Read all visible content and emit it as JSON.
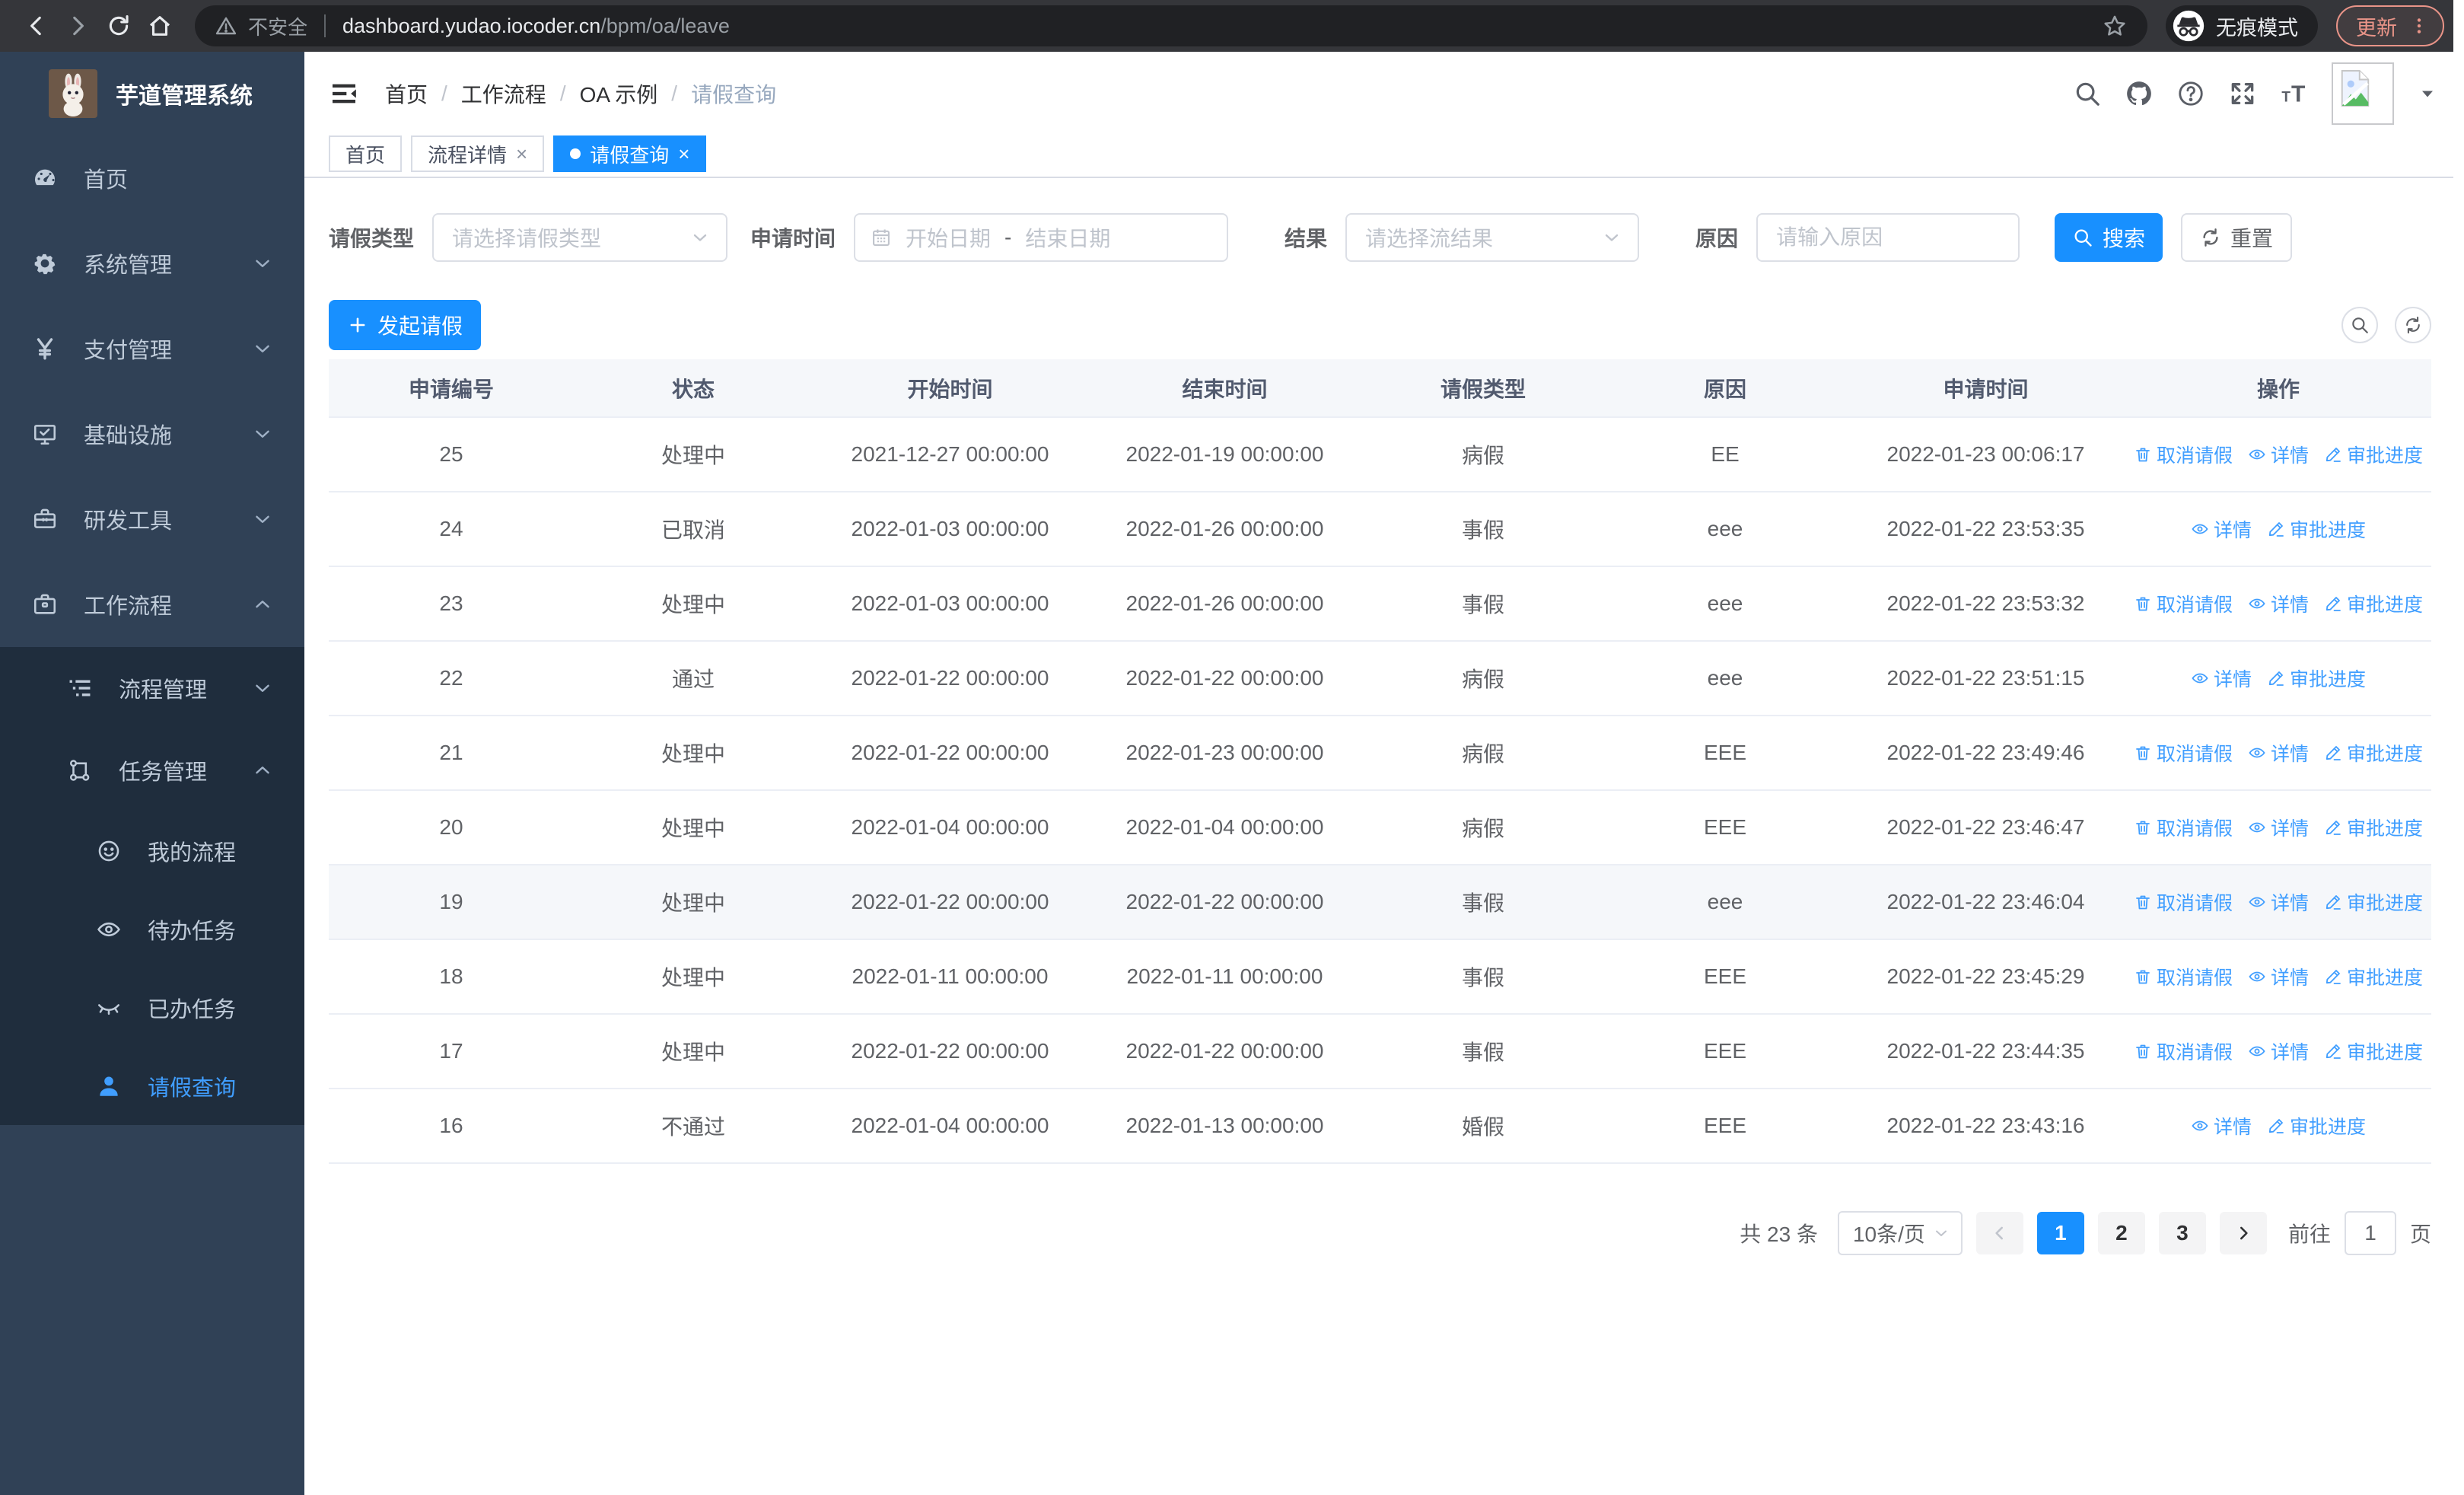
{
  "theme": {
    "accent": "#1890ff",
    "link": "#409eff",
    "sidebar_bg": "#304156",
    "submenu_bg": "#1f2d3d",
    "sidebar_text": "#bfcbd9"
  },
  "browser": {
    "security_label": "不安全",
    "url_host": "dashboard.yudao.iocoder.cn",
    "url_path": "/bpm/oa/leave",
    "incognito_label": "无痕模式",
    "update_label": "更新"
  },
  "sidebar": {
    "app_title": "芋道管理系统",
    "items": [
      {
        "label": "首页",
        "icon": "dashboard-icon"
      },
      {
        "label": "系统管理",
        "icon": "gear-icon",
        "expandable": true,
        "expanded": false
      },
      {
        "label": "支付管理",
        "icon": "yen-icon",
        "expandable": true,
        "expanded": false
      },
      {
        "label": "基础设施",
        "icon": "monitor-icon",
        "expandable": true,
        "expanded": false
      },
      {
        "label": "研发工具",
        "icon": "toolbox-icon",
        "expandable": true,
        "expanded": false
      },
      {
        "label": "工作流程",
        "icon": "briefcase-icon",
        "expandable": true,
        "expanded": true,
        "children": [
          {
            "label": "流程管理",
            "icon": "tree-list-icon",
            "expandable": true,
            "expanded": false
          },
          {
            "label": "任务管理",
            "icon": "sitemap-icon",
            "expandable": true,
            "expanded": true,
            "children": [
              {
                "label": "我的流程",
                "icon": "face-icon"
              },
              {
                "label": "待办任务",
                "icon": "eye-open-icon"
              },
              {
                "label": "已办任务",
                "icon": "eye-closed-icon"
              },
              {
                "label": "请假查询",
                "icon": "user-icon",
                "active": true
              }
            ]
          }
        ]
      }
    ]
  },
  "breadcrumb": {
    "items": [
      "首页",
      "工作流程",
      "OA 示例",
      "请假查询"
    ]
  },
  "tabs": [
    {
      "label": "首页",
      "closable": false,
      "active": false
    },
    {
      "label": "流程详情",
      "closable": true,
      "active": false
    },
    {
      "label": "请假查询",
      "closable": true,
      "active": true
    }
  ],
  "filters": {
    "leave_type_label": "请假类型",
    "leave_type_placeholder": "请选择请假类型",
    "apply_time_label": "申请时间",
    "start_date_placeholder": "开始日期",
    "range_separator": "-",
    "end_date_placeholder": "结束日期",
    "result_label": "结果",
    "result_placeholder": "请选择流结果",
    "reason_label": "原因",
    "reason_placeholder": "请输入原因",
    "search_label": "搜索",
    "reset_label": "重置"
  },
  "toolbar": {
    "create_label": "发起请假"
  },
  "table": {
    "columns": [
      "申请编号",
      "状态",
      "开始时间",
      "结束时间",
      "请假类型",
      "原因",
      "申请时间",
      "操作"
    ],
    "action_labels": {
      "cancel": "取消请假",
      "detail": "详情",
      "progress": "审批进度"
    },
    "rows": [
      {
        "id": "25",
        "status": "处理中",
        "start": "2021-12-27 00:00:00",
        "end": "2022-01-19 00:00:00",
        "type": "病假",
        "reason": "EE",
        "apply_time": "2022-01-23 00:06:17",
        "actions": [
          "cancel",
          "detail",
          "progress"
        ],
        "highlighted": false
      },
      {
        "id": "24",
        "status": "已取消",
        "start": "2022-01-03 00:00:00",
        "end": "2022-01-26 00:00:00",
        "type": "事假",
        "reason": "eee",
        "apply_time": "2022-01-22 23:53:35",
        "actions": [
          "detail",
          "progress"
        ],
        "highlighted": false
      },
      {
        "id": "23",
        "status": "处理中",
        "start": "2022-01-03 00:00:00",
        "end": "2022-01-26 00:00:00",
        "type": "事假",
        "reason": "eee",
        "apply_time": "2022-01-22 23:53:32",
        "actions": [
          "cancel",
          "detail",
          "progress"
        ],
        "highlighted": false
      },
      {
        "id": "22",
        "status": "通过",
        "start": "2022-01-22 00:00:00",
        "end": "2022-01-22 00:00:00",
        "type": "病假",
        "reason": "eee",
        "apply_time": "2022-01-22 23:51:15",
        "actions": [
          "detail",
          "progress"
        ],
        "highlighted": false
      },
      {
        "id": "21",
        "status": "处理中",
        "start": "2022-01-22 00:00:00",
        "end": "2022-01-23 00:00:00",
        "type": "病假",
        "reason": "EEE",
        "apply_time": "2022-01-22 23:49:46",
        "actions": [
          "cancel",
          "detail",
          "progress"
        ],
        "highlighted": false
      },
      {
        "id": "20",
        "status": "处理中",
        "start": "2022-01-04 00:00:00",
        "end": "2022-01-04 00:00:00",
        "type": "病假",
        "reason": "EEE",
        "apply_time": "2022-01-22 23:46:47",
        "actions": [
          "cancel",
          "detail",
          "progress"
        ],
        "highlighted": false
      },
      {
        "id": "19",
        "status": "处理中",
        "start": "2022-01-22 00:00:00",
        "end": "2022-01-22 00:00:00",
        "type": "事假",
        "reason": "eee",
        "apply_time": "2022-01-22 23:46:04",
        "actions": [
          "cancel",
          "detail",
          "progress"
        ],
        "highlighted": true
      },
      {
        "id": "18",
        "status": "处理中",
        "start": "2022-01-11 00:00:00",
        "end": "2022-01-11 00:00:00",
        "type": "事假",
        "reason": "EEE",
        "apply_time": "2022-01-22 23:45:29",
        "actions": [
          "cancel",
          "detail",
          "progress"
        ],
        "highlighted": false
      },
      {
        "id": "17",
        "status": "处理中",
        "start": "2022-01-22 00:00:00",
        "end": "2022-01-22 00:00:00",
        "type": "事假",
        "reason": "EEE",
        "apply_time": "2022-01-22 23:44:35",
        "actions": [
          "cancel",
          "detail",
          "progress"
        ],
        "highlighted": false
      },
      {
        "id": "16",
        "status": "不通过",
        "start": "2022-01-04 00:00:00",
        "end": "2022-01-13 00:00:00",
        "type": "婚假",
        "reason": "EEE",
        "apply_time": "2022-01-22 23:43:16",
        "actions": [
          "detail",
          "progress"
        ],
        "highlighted": false
      }
    ]
  },
  "pagination": {
    "total_label": "共 23 条",
    "page_size_label": "10条/页",
    "pages": [
      "1",
      "2",
      "3"
    ],
    "active_page": "1",
    "goto_label": "前往",
    "goto_value": "1",
    "unit_label": "页"
  }
}
